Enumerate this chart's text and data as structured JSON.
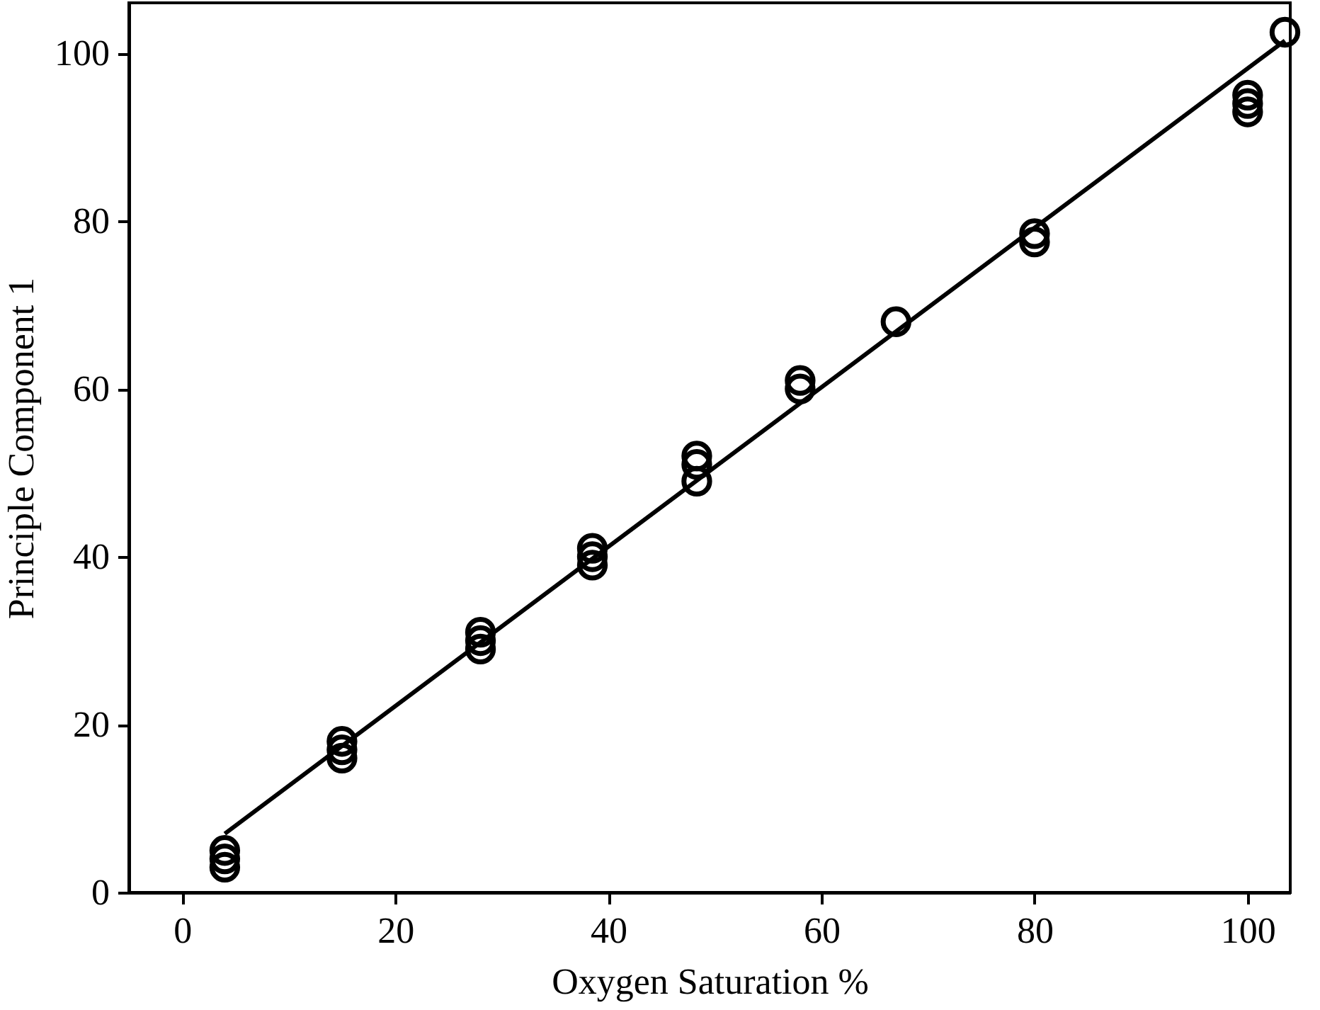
{
  "chart_data": {
    "type": "scatter",
    "xlabel": "Oxygen Saturation %",
    "ylabel": "Principle Component 1",
    "xlim": [
      -5,
      104
    ],
    "ylim": [
      0,
      106
    ],
    "xticks": [
      0,
      20,
      40,
      60,
      80,
      100
    ],
    "yticks": [
      0,
      20,
      40,
      60,
      80,
      100
    ],
    "grid": false,
    "marker": "circle",
    "series": [
      {
        "color": "#000000",
        "x": [
          4,
          4,
          4,
          15,
          15,
          15,
          28,
          28,
          28,
          38.5,
          38.5,
          38.5,
          48.3,
          48.3,
          48.3,
          58,
          58,
          67,
          80,
          80,
          100,
          100,
          100,
          103.5
        ],
        "values": [
          3,
          4,
          5,
          16,
          17,
          18,
          29,
          30,
          31,
          39,
          40,
          41,
          49,
          51,
          52,
          60,
          61,
          68,
          77.5,
          78.5,
          93,
          94,
          95,
          102.5
        ]
      },
      {
        "type": "line",
        "color": "#000000",
        "marker": "none",
        "line_style": "solid",
        "x": [
          4,
          103.5
        ],
        "values": [
          7,
          101.5
        ]
      }
    ]
  }
}
